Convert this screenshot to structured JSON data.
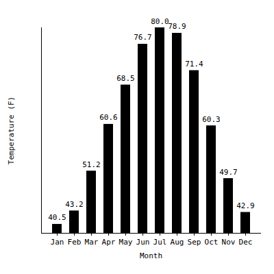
{
  "chart_data": {
    "type": "bar",
    "x_label": "Month",
    "y_label": "Temperature (F)",
    "categories": [
      "Jan",
      "Feb",
      "Mar",
      "Apr",
      "May",
      "Jun",
      "Jul",
      "Aug",
      "Sep",
      "Oct",
      "Nov",
      "Dec"
    ],
    "values": [
      40.5,
      43.2,
      51.2,
      60.6,
      68.5,
      76.7,
      80.0,
      78.9,
      71.4,
      60.3,
      49.7,
      42.9
    ],
    "value_labels": [
      "40.5",
      "43.2",
      "51.2",
      "60.6",
      "68.5",
      "76.7",
      "80.0",
      "78.9",
      "71.4",
      "60.3",
      "49.7",
      "42.9"
    ],
    "color": "#000000",
    "ylim": [
      38.7,
      80.0
    ],
    "yticks": [],
    "grid": false,
    "data_labels": true,
    "tick_labels": "x"
  }
}
